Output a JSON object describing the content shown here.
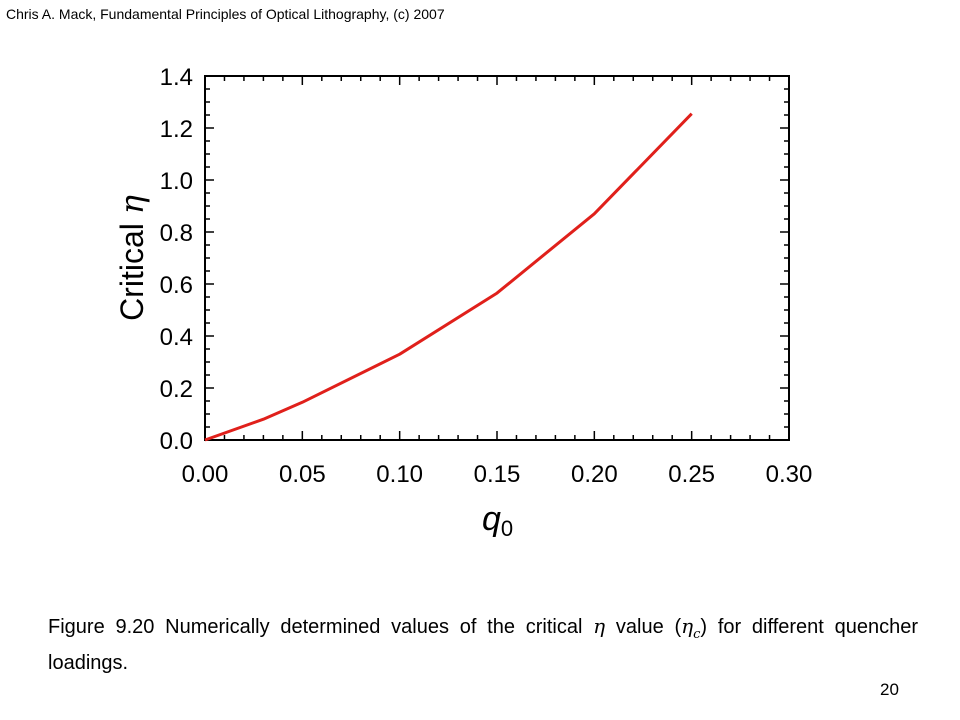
{
  "header": {
    "text": "Chris A. Mack, Fundamental Principles of Optical Lithography, (c) 2007"
  },
  "caption": {
    "part1": "Figure 9.20  Numerically determined values of the critical ",
    "eta": "η",
    "part2": " value (",
    "eta_c": "η",
    "eta_c_sub": "c",
    "part3": ") for different quencher loadings."
  },
  "page_number": "20",
  "chart_data": {
    "type": "line",
    "title": "",
    "xlabel": "q",
    "xlabel_sub": "0",
    "ylabel": "Critical ",
    "ylabel_symbol": "η",
    "xlim": [
      0.0,
      0.3
    ],
    "ylim": [
      0.0,
      1.4
    ],
    "xticks": [
      "0.00",
      "0.05",
      "0.10",
      "0.15",
      "0.20",
      "0.25",
      "0.30"
    ],
    "yticks": [
      "0.0",
      "0.2",
      "0.4",
      "0.6",
      "0.8",
      "1.0",
      "1.2",
      "1.4"
    ],
    "grid": false,
    "line_color": "#e0201b",
    "series": [
      {
        "x": [
          0.0,
          0.03,
          0.05,
          0.1,
          0.15,
          0.2,
          0.25
        ],
        "y": [
          0.0,
          0.08,
          0.145,
          0.33,
          0.565,
          0.87,
          1.255
        ]
      }
    ]
  }
}
